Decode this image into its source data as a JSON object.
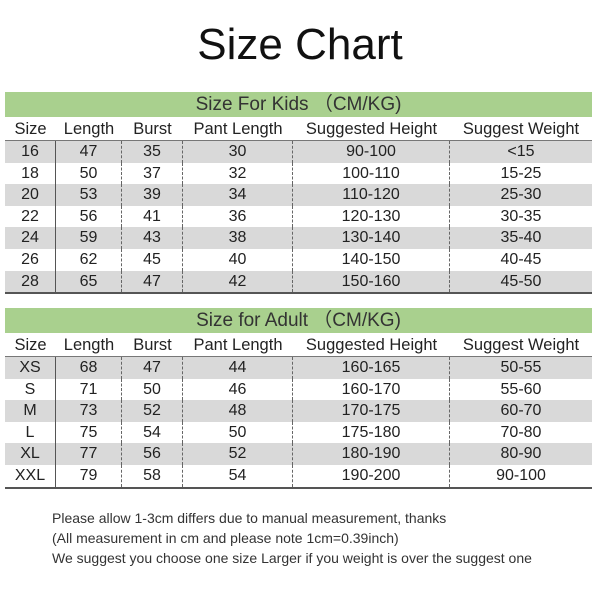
{
  "title": "Size Chart",
  "columns": [
    "Size",
    "Length",
    "Burst",
    "Pant Length",
    "Suggested Height",
    "Suggest Weight"
  ],
  "kids": {
    "heading": "Size For Kids （CM/KG)",
    "rows": [
      [
        "16",
        "47",
        "35",
        "30",
        "90-100",
        "<15"
      ],
      [
        "18",
        "50",
        "37",
        "32",
        "100-110",
        "15-25"
      ],
      [
        "20",
        "53",
        "39",
        "34",
        "110-120",
        "25-30"
      ],
      [
        "22",
        "56",
        "41",
        "36",
        "120-130",
        "30-35"
      ],
      [
        "24",
        "59",
        "43",
        "38",
        "130-140",
        "35-40"
      ],
      [
        "26",
        "62",
        "45",
        "40",
        "140-150",
        "40-45"
      ],
      [
        "28",
        "65",
        "47",
        "42",
        "150-160",
        "45-50"
      ]
    ]
  },
  "adult": {
    "heading": "Size for Adult （CM/KG)",
    "rows": [
      [
        "XS",
        "68",
        "47",
        "44",
        "160-165",
        "50-55"
      ],
      [
        "S",
        "71",
        "50",
        "46",
        "160-170",
        "55-60"
      ],
      [
        "M",
        "73",
        "52",
        "48",
        "170-175",
        "60-70"
      ],
      [
        "L",
        "75",
        "54",
        "50",
        "175-180",
        "70-80"
      ],
      [
        "XL",
        "77",
        "56",
        "52",
        "180-190",
        "80-90"
      ],
      [
        "XXL",
        "79",
        "58",
        "54",
        "190-200",
        "90-100"
      ]
    ]
  },
  "notes": [
    "Please allow 1-3cm differs due to manual measurement, thanks",
    "(All measurement in cm and please note 1cm=0.39inch)",
    "We suggest you choose one size Larger if you weight is over the suggest one"
  ],
  "colors": {
    "band": "#a9d08e",
    "stripe": "#d9d9d9"
  }
}
